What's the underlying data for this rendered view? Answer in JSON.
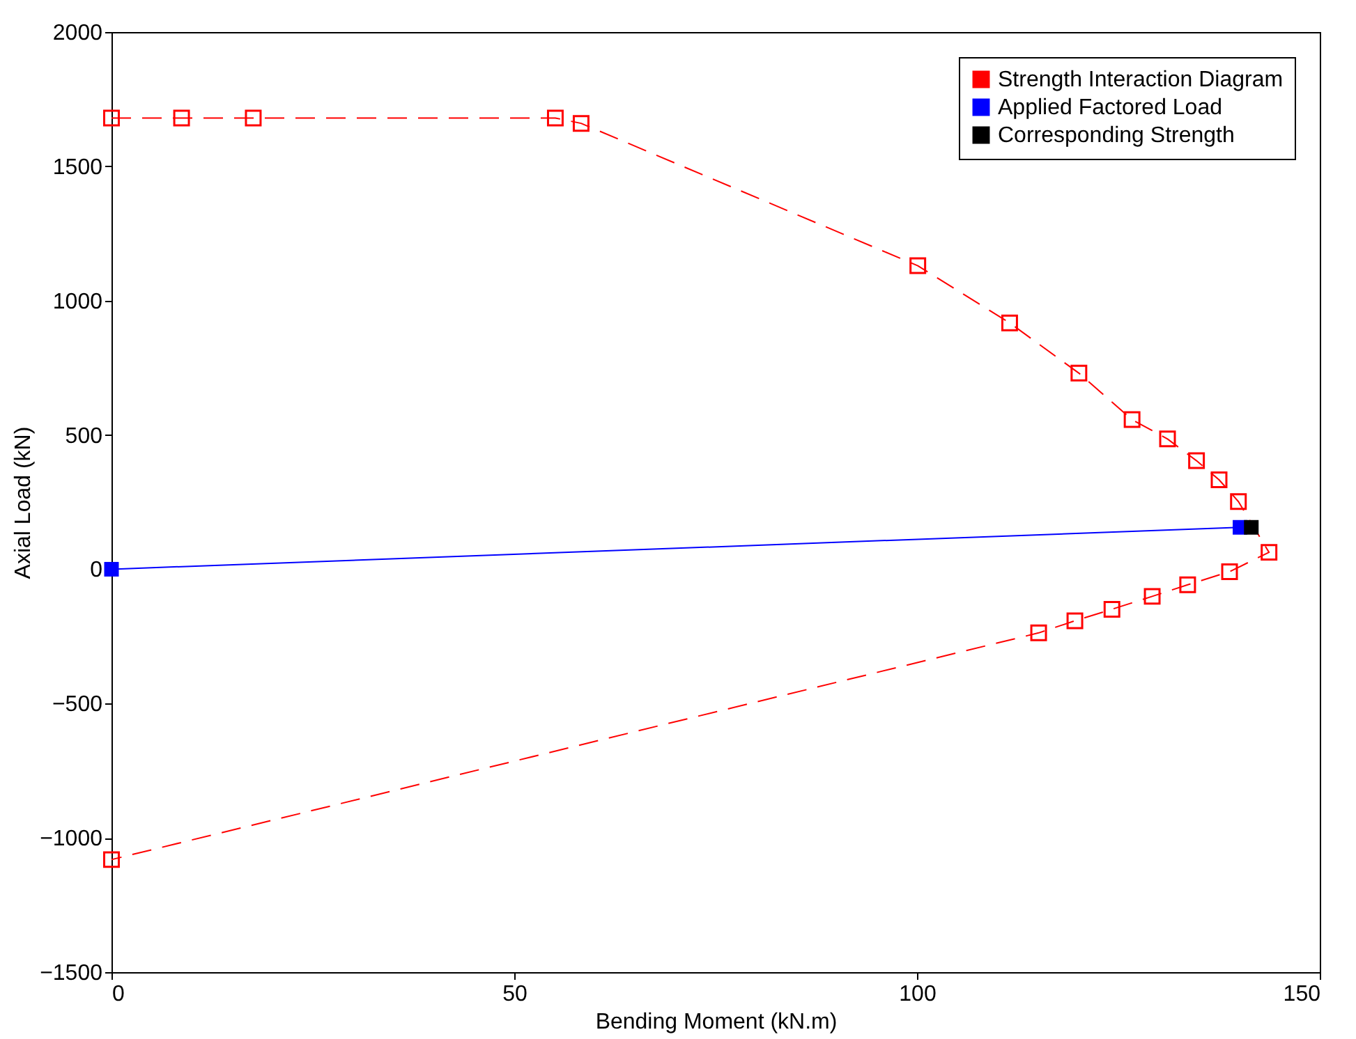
{
  "chart_data": {
    "type": "line",
    "xlabel": "Bending Moment (kN.m)",
    "ylabel": "Axial Load (kN)",
    "xlim": [
      0,
      150
    ],
    "xticks": [
      0,
      50,
      100,
      150
    ],
    "ylim": [
      -1500,
      2000
    ],
    "yticks": [
      -1500,
      -1000,
      -500,
      0,
      500,
      1000,
      1500,
      2000
    ],
    "grid": false,
    "legend": "top right",
    "series": [
      {
        "name": "Strength Interaction Diagram",
        "color": "#ff0000",
        "type": "line",
        "marker": "square",
        "line_style": "dashed",
        "x": [
          0,
          8.7,
          17.6,
          55.1,
          58.3,
          100.1,
          111.5,
          120.1,
          126.7,
          131.1,
          134.7,
          137.5,
          139.9,
          143.7,
          138.8,
          133.6,
          129.2,
          124.2,
          119.6,
          115.1,
          0
        ],
        "values": [
          1680,
          1680,
          1680,
          1680,
          1660,
          1130,
          917,
          730,
          557,
          485,
          404,
          333,
          252,
          63,
          -9,
          -58,
          -101,
          -149,
          -192,
          -237,
          -1081
        ]
      },
      {
        "name": "Applied Factored Load",
        "color": "#0000ff",
        "type": "line",
        "marker": "square",
        "line_style": "solid",
        "x": [
          0,
          140.1
        ],
        "values": [
          0,
          156
        ]
      },
      {
        "name": "Corresponding Strength",
        "color": "#000000",
        "type": "scatter",
        "marker": "square",
        "x": [
          141.5
        ],
        "values": [
          156
        ]
      }
    ]
  }
}
